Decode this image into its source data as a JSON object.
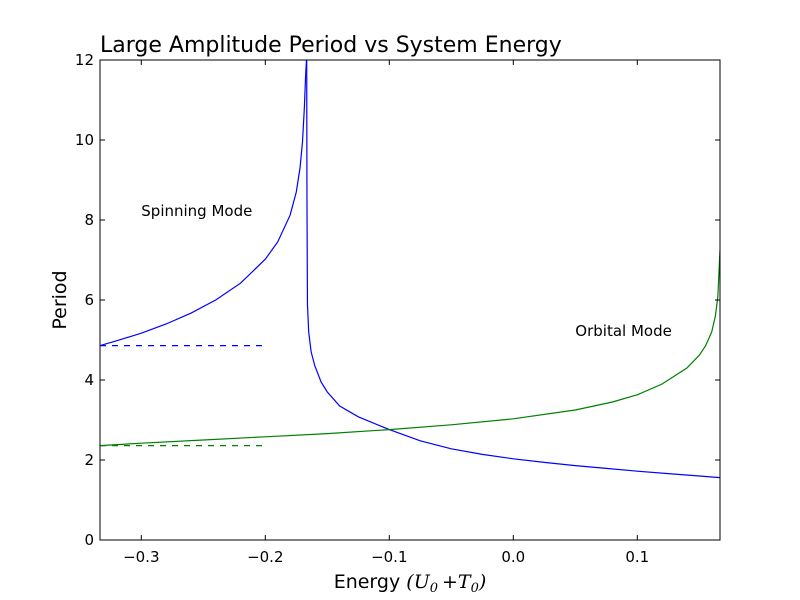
{
  "chart_data": {
    "type": "line",
    "title": "Large Amplitude Period vs System Energy",
    "xlabel_text": "Energy",
    "xlabel_math": {
      "open": "(",
      "u": "U",
      "u_sub": "0",
      "plus": "+",
      "t": "T",
      "t_sub": "0",
      "close": ")"
    },
    "ylabel": "Period",
    "xlim": [
      -0.3333,
      0.1667
    ],
    "ylim": [
      0,
      12
    ],
    "xticks": [
      -0.3,
      -0.2,
      -0.1,
      0.0,
      0.1
    ],
    "xtick_labels": [
      "−0.3",
      "−0.2",
      "−0.1",
      "0.0",
      "0.1"
    ],
    "yticks": [
      0,
      2,
      4,
      6,
      8,
      10,
      12
    ],
    "ytick_labels": [
      "0",
      "2",
      "4",
      "6",
      "8",
      "10",
      "12"
    ],
    "grid": false,
    "series": [
      {
        "color": "#0000ff",
        "dash": false,
        "x": [
          -0.3333,
          -0.32,
          -0.3,
          -0.28,
          -0.26,
          -0.24,
          -0.22,
          -0.2,
          -0.19,
          -0.18,
          -0.175,
          -0.172,
          -0.17,
          -0.1685,
          -0.1675,
          -0.1668
        ],
        "y": [
          4.86,
          4.98,
          5.17,
          5.4,
          5.67,
          6.0,
          6.42,
          7.02,
          7.45,
          8.12,
          8.7,
          9.3,
          9.95,
          10.8,
          11.6,
          12.0
        ]
      },
      {
        "color": "#0000ff",
        "dash": false,
        "x": [
          -0.1666,
          -0.1664,
          -0.166,
          -0.165,
          -0.163,
          -0.16,
          -0.155,
          -0.15,
          -0.14,
          -0.125,
          -0.1,
          -0.075,
          -0.05,
          -0.025,
          0.0,
          0.025,
          0.05,
          0.075,
          0.1,
          0.125,
          0.15,
          0.1667
        ],
        "y": [
          12.0,
          8.5,
          5.9,
          5.2,
          4.7,
          4.35,
          3.95,
          3.7,
          3.35,
          3.08,
          2.76,
          2.48,
          2.28,
          2.14,
          2.03,
          1.94,
          1.86,
          1.79,
          1.72,
          1.66,
          1.6,
          1.56
        ]
      },
      {
        "color": "#0000ff",
        "dash": true,
        "x": [
          -0.3333,
          -0.2
        ],
        "y": [
          4.86,
          4.86
        ]
      },
      {
        "color": "#008000",
        "dash": false,
        "x": [
          -0.3333,
          -0.3,
          -0.25,
          -0.2,
          -0.15,
          -0.1,
          -0.05,
          0.0,
          0.05,
          0.08,
          0.1,
          0.12,
          0.14,
          0.15,
          0.155,
          0.16,
          0.163,
          0.165,
          0.1667
        ],
        "y": [
          2.36,
          2.42,
          2.5,
          2.58,
          2.66,
          2.76,
          2.88,
          3.03,
          3.25,
          3.45,
          3.63,
          3.9,
          4.3,
          4.62,
          4.85,
          5.2,
          5.6,
          6.1,
          7.25
        ]
      },
      {
        "color": "#008000",
        "dash": true,
        "x": [
          -0.3333,
          -0.2
        ],
        "y": [
          2.36,
          2.36
        ]
      }
    ],
    "annotations": [
      {
        "text": "Spinning Mode",
        "x": -0.3,
        "y": 8.1
      },
      {
        "text": "Orbital Mode",
        "x": 0.05,
        "y": 5.1
      }
    ]
  }
}
